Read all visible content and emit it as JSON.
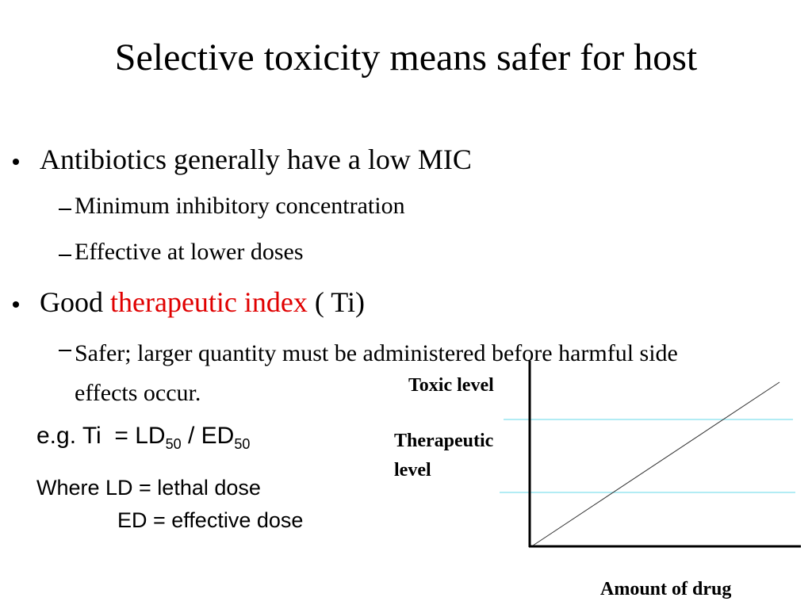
{
  "title": "Selective toxicity means safer for host",
  "bullets": [
    {
      "text": "Antibiotics generally have a low MIC",
      "sub": [
        "Minimum inhibitory concentration",
        "Effective at lower doses"
      ]
    },
    {
      "text_parts": [
        "Good ",
        "therapeutic index",
        " ( Ti)"
      ],
      "sub": [
        "Safer; larger quantity must be administered before harmful side effects occur."
      ]
    }
  ],
  "formula": {
    "parts": [
      "e.g. Ti  = LD",
      "50",
      " / ED",
      "50"
    ]
  },
  "definitions": [
    "Where LD = lethal dose",
    "ED = effective dose"
  ],
  "diagram": {
    "toxic_label": "Toxic level",
    "therapeutic_label": "Therapeutic level",
    "x_label": "Amount of drug"
  }
}
